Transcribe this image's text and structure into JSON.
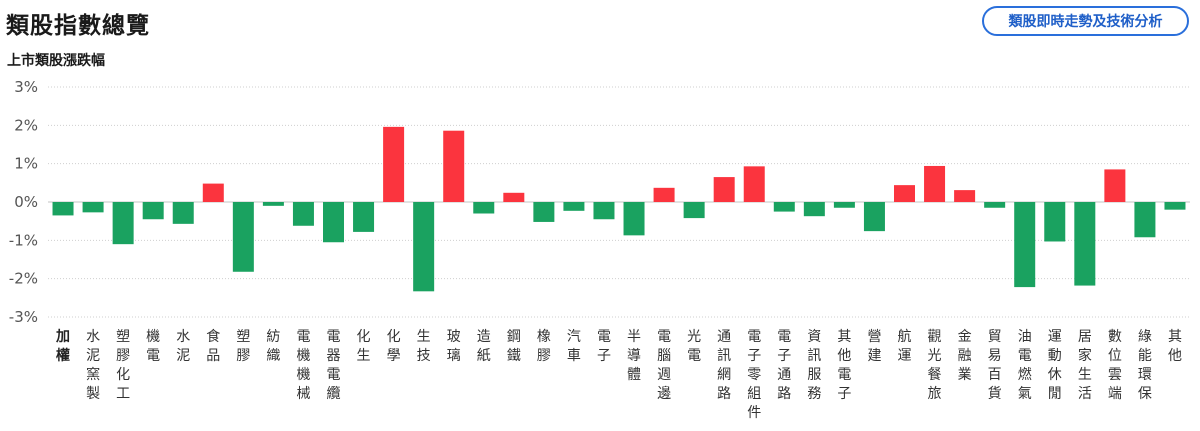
{
  "header": {
    "title": "類股指數總覽",
    "action_button": "類股即時走勢及技術分析"
  },
  "colors": {
    "up": "#fb343e",
    "down": "#1aa260",
    "axis": "#cfcfcf"
  },
  "chart_data": {
    "type": "bar",
    "title": "上市類股漲跌幅",
    "ylabel": "",
    "xlabel": "",
    "ylim": [
      -3,
      3
    ],
    "yticks": [
      "3%",
      "2%",
      "1%",
      "0%",
      "-1%",
      "-2%",
      "-3%"
    ],
    "unit": "%",
    "categories": [
      "加權",
      "水泥窯製",
      "塑膠化工",
      "機電",
      "水泥",
      "食品",
      "塑膠",
      "紡織",
      "電機機械",
      "電器電纜",
      "化生",
      "化學",
      "生技",
      "玻璃",
      "造紙",
      "鋼鐵",
      "橡膠",
      "汽車",
      "電子",
      "半導體",
      "電腦週邊",
      "光電",
      "通訊網路",
      "電子零組件",
      "電子通路",
      "資訊服務",
      "其他電子",
      "營建",
      "航運",
      "觀光餐旅",
      "金融業",
      "貿易百貨",
      "油電燃氣",
      "運動休閒",
      "居家生活",
      "數位雲端",
      "綠能環保",
      "其他"
    ],
    "values": [
      -0.35,
      -0.27,
      -1.1,
      -0.45,
      -0.57,
      0.48,
      -1.82,
      -0.1,
      -0.62,
      -1.05,
      -0.78,
      1.96,
      -2.33,
      1.86,
      -0.3,
      0.24,
      -0.52,
      -0.23,
      -0.45,
      -0.87,
      0.37,
      -0.42,
      0.65,
      0.93,
      -0.25,
      -0.37,
      -0.15,
      -0.76,
      0.44,
      0.94,
      0.31,
      -0.15,
      -2.22,
      -1.03,
      -2.18,
      0.85,
      -0.92,
      -0.2
    ]
  }
}
